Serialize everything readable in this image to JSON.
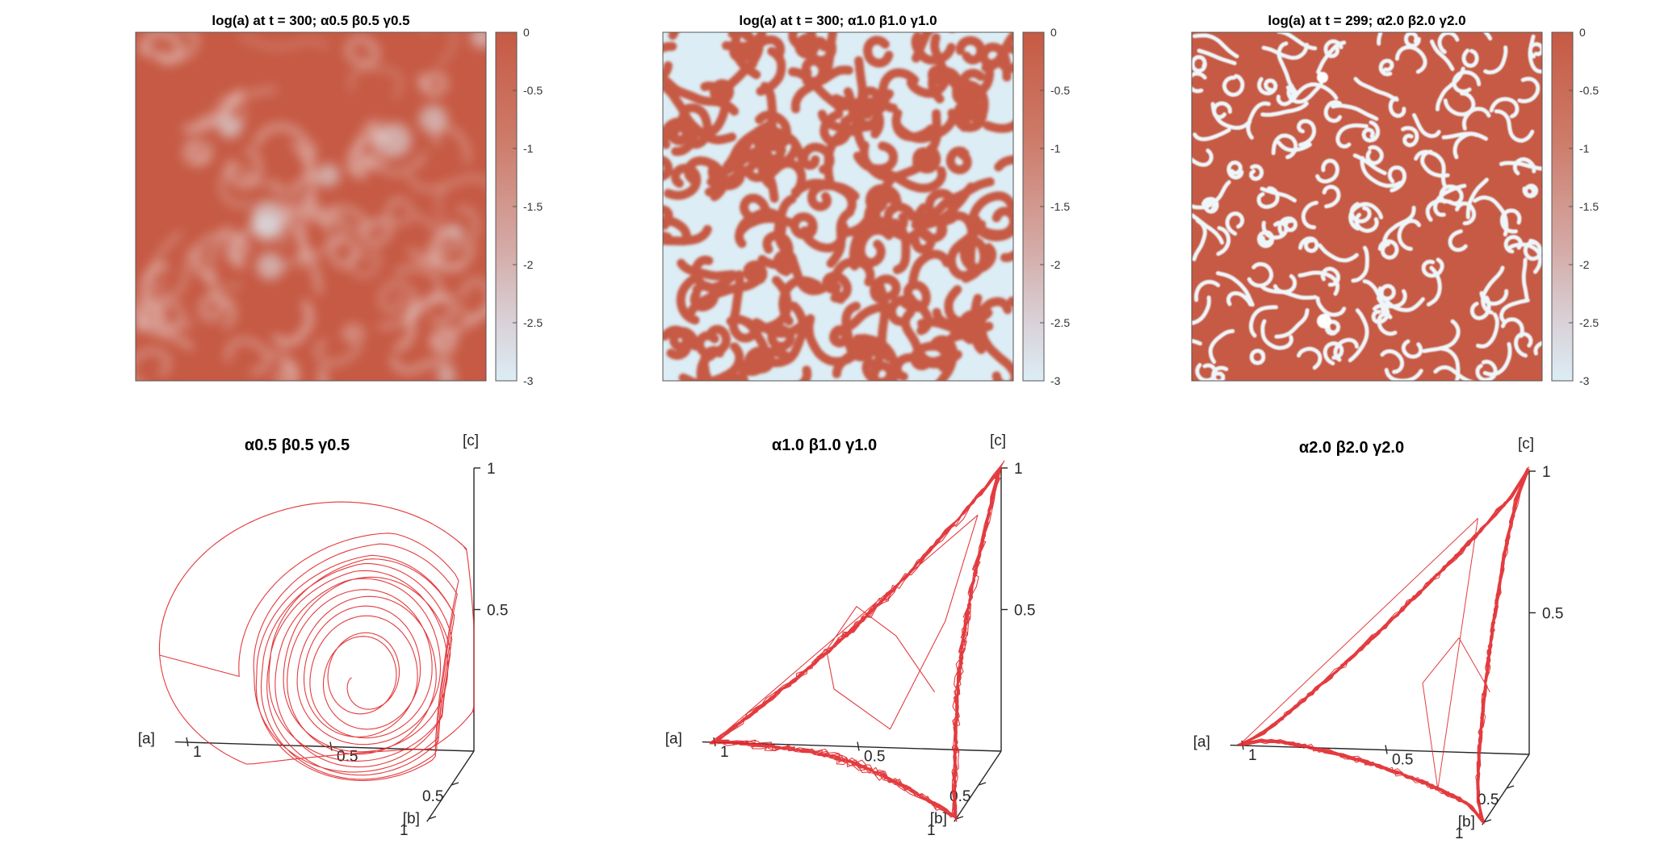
{
  "chart_data": [
    {
      "type": "heatmap",
      "title": "log(a) at t = 300; α0.5 β0.5 γ0.5",
      "colorbar": {
        "ticks": [
          "0",
          "-0.5",
          "-1",
          "-1.5",
          "-2",
          "-2.5",
          "-3"
        ],
        "range": [
          -3,
          0
        ]
      },
      "pattern": "diffuse-swirl",
      "alpha": 0.5,
      "beta": 0.5,
      "gamma": 0.5,
      "colors": {
        "high": "#c65a44",
        "low": "#dcedf5"
      }
    },
    {
      "type": "heatmap",
      "title": "log(a) at t = 300; α1.0 β1.0 γ1.0",
      "colorbar": {
        "ticks": [
          "0",
          "-0.5",
          "-1",
          "-1.5",
          "-2",
          "-2.5",
          "-3"
        ],
        "range": [
          -3,
          0
        ]
      },
      "pattern": "spiral-worms",
      "alpha": 1.0,
      "beta": 1.0,
      "gamma": 1.0,
      "colors": {
        "high": "#c65a44",
        "low": "#dcedf5"
      }
    },
    {
      "type": "heatmap",
      "title": "log(a) at t = 299; α2.0 β2.0 γ2.0",
      "colorbar": {
        "ticks": [
          "0",
          "-0.5",
          "-1",
          "-1.5",
          "-2",
          "-2.5",
          "-3"
        ],
        "range": [
          -3,
          0
        ]
      },
      "pattern": "thin-worms",
      "alpha": 2.0,
      "beta": 2.0,
      "gamma": 2.0,
      "colors": {
        "high": "#c65a44",
        "low": "#dcedf5"
      }
    },
    {
      "type": "line",
      "title": "α0.5 β0.5 γ0.5",
      "axes": {
        "a_label": "[a]",
        "b_label": "[b]",
        "c_label": "[c]",
        "a_ticks": [
          "1",
          "0.5"
        ],
        "b_ticks": [
          "0.5",
          "1"
        ],
        "c_ticks": [
          "0.5",
          "1"
        ]
      },
      "range": [
        0,
        1
      ],
      "trajectory": "spiral-to-limit-cycle",
      "line_color": "#e0262a"
    },
    {
      "type": "line",
      "title": "α1.0 β1.0 γ1.0",
      "axes": {
        "a_label": "[a]",
        "b_label": "[b]",
        "c_label": "[c]",
        "a_ticks": [
          "1",
          "0.5"
        ],
        "b_ticks": [
          "0.5",
          "1"
        ],
        "c_ticks": [
          "0.5",
          "1"
        ]
      },
      "range": [
        0,
        1
      ],
      "trajectory": "heteroclinic-triangle",
      "line_color": "#e0262a"
    },
    {
      "type": "line",
      "title": "α2.0 β2.0 γ2.0",
      "axes": {
        "a_label": "[a]",
        "b_label": "[b]",
        "c_label": "[c]",
        "a_ticks": [
          "1",
          "0.5"
        ],
        "b_ticks": [
          "0.5",
          "1"
        ],
        "c_ticks": [
          "0.5",
          "1"
        ]
      },
      "range": [
        0,
        1
      ],
      "trajectory": "sharp-heteroclinic-triangle",
      "line_color": "#e0262a"
    }
  ]
}
